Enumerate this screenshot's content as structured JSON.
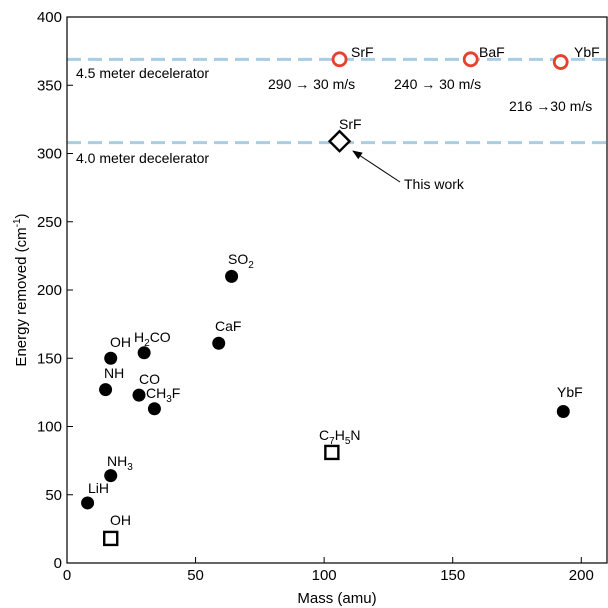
{
  "chart_data": {
    "type": "scatter",
    "xlabel": "Mass (amu)",
    "ylabel_base": "Energy removed (cm",
    "ylabel_sup": "-1",
    "ylabel_end": ")",
    "xlim": [
      0,
      210
    ],
    "ylim": [
      0,
      400
    ],
    "xticks": [
      0,
      50,
      100,
      150,
      200
    ],
    "yticks": [
      0,
      50,
      100,
      150,
      200,
      250,
      300,
      350,
      400
    ],
    "grid": false,
    "colors": {
      "filled": "#000000",
      "open_circle": "#e8402f",
      "dashed_line": "#a9cde3"
    },
    "series": [
      {
        "marker": "filled-circle",
        "points": [
          {
            "label": "LiH",
            "x": 8,
            "y": 44
          },
          {
            "label": "NH3",
            "x": 17,
            "y": 64
          },
          {
            "label": "NH",
            "x": 15,
            "y": 127
          },
          {
            "label": "OH",
            "x": 17,
            "y": 150
          },
          {
            "label": "H2CO",
            "x": 30,
            "y": 154
          },
          {
            "label": "CO",
            "x": 28,
            "y": 123
          },
          {
            "label": "CH3F",
            "x": 34,
            "y": 113
          },
          {
            "label": "CaF",
            "x": 59,
            "y": 161
          },
          {
            "label": "SO2",
            "x": 64,
            "y": 210
          },
          {
            "label": "YbF",
            "x": 193,
            "y": 111
          }
        ]
      },
      {
        "marker": "open-square",
        "points": [
          {
            "label": "OH",
            "x": 17,
            "y": 18
          },
          {
            "label": "C7H5N",
            "x": 103,
            "y": 81
          }
        ]
      },
      {
        "marker": "open-diamond",
        "points": [
          {
            "label": "SrF",
            "x": 106,
            "y": 309
          }
        ]
      },
      {
        "marker": "open-circle",
        "points": [
          {
            "label": "SrF",
            "x": 106,
            "y": 369
          },
          {
            "label": "BaF",
            "x": 157,
            "y": 369
          },
          {
            "label": "YbF",
            "x": 192,
            "y": 367
          }
        ]
      }
    ],
    "reference_lines": [
      {
        "y": 369,
        "label": "4.5 meter decelerator"
      },
      {
        "y": 308,
        "label": "4.0 meter decelerator"
      }
    ],
    "annotations": {
      "this_work": "This work",
      "srf_speed": "290 → 30 m/s",
      "baf_speed": "240 → 30 m/s",
      "ybf_speed": "216 →30 m/s"
    }
  }
}
